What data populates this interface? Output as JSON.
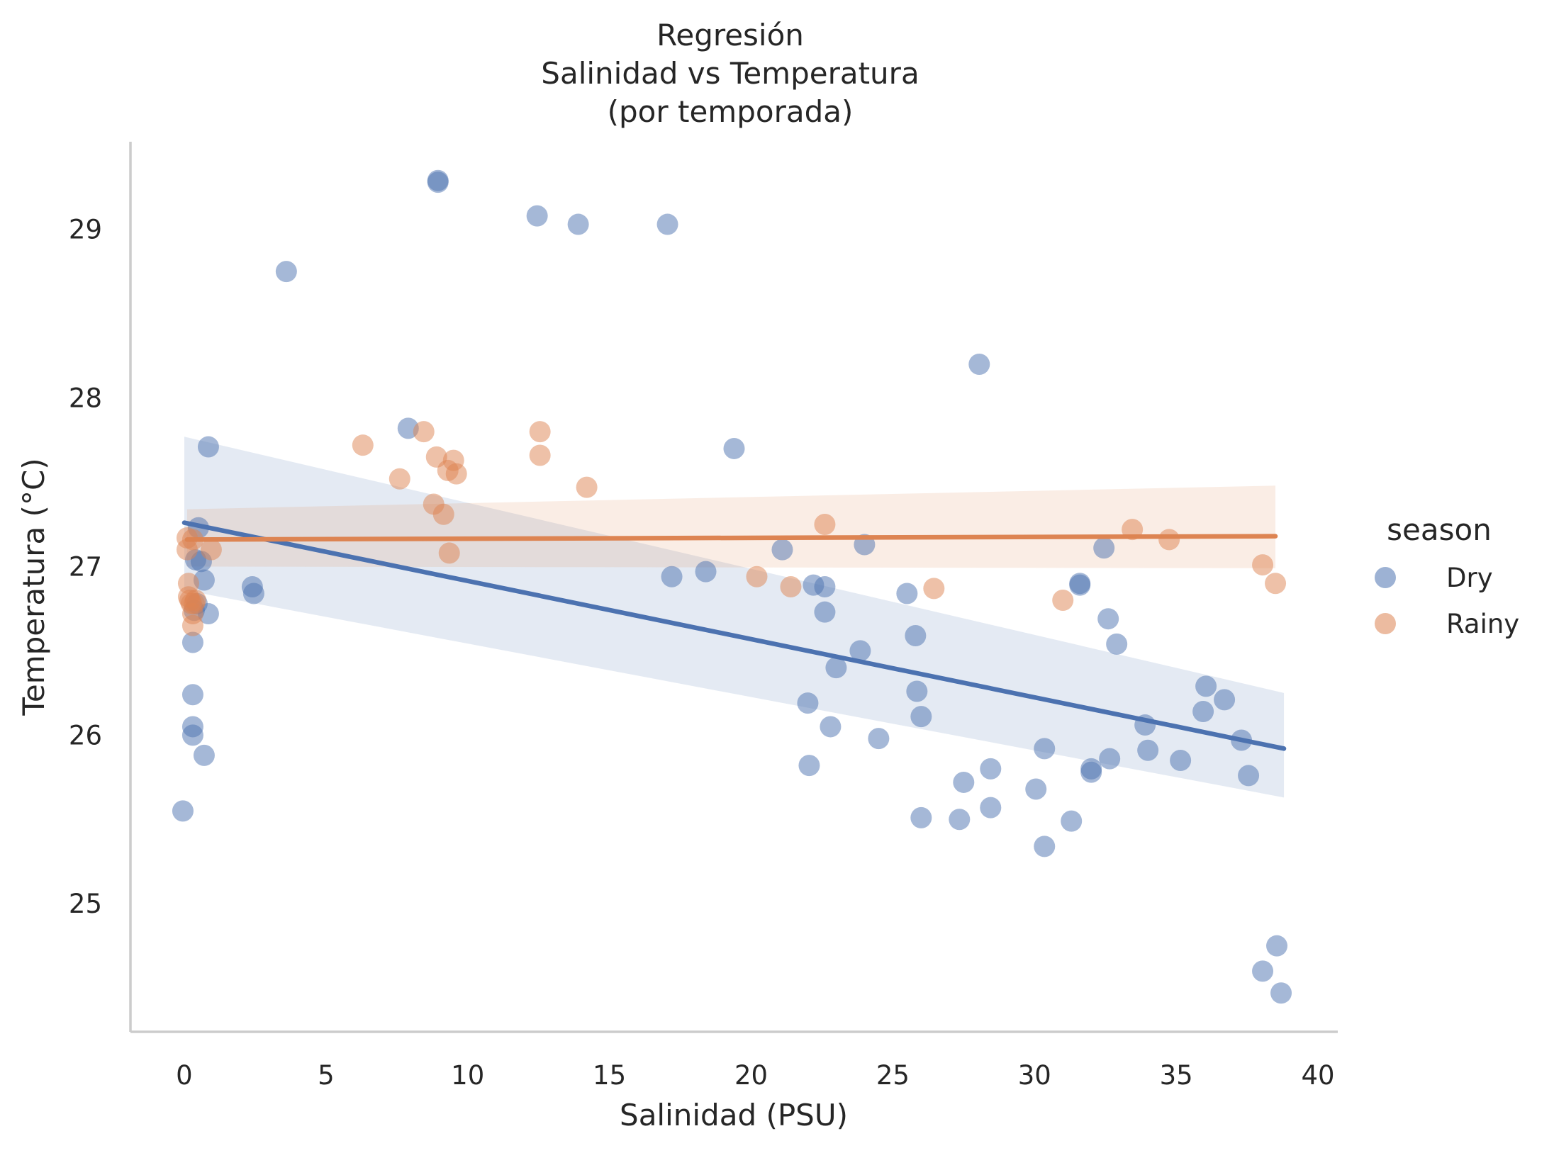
{
  "chart_data": {
    "type": "scatter",
    "title_lines": [
      "Regresión",
      "Salinidad vs Temperatura",
      "(por temporada)"
    ],
    "xlabel": "Salinidad (PSU)",
    "ylabel": "Temperatura (°C)",
    "xlim": [
      -1.9,
      40.7
    ],
    "ylim": [
      24.24,
      29.52
    ],
    "x_ticks": [
      0,
      5,
      10,
      15,
      20,
      25,
      30,
      35,
      40
    ],
    "y_ticks": [
      25,
      26,
      27,
      28,
      29
    ],
    "grid": false,
    "legend": {
      "title": "season",
      "placement": "right",
      "entries": [
        "Dry",
        "Rainy"
      ]
    },
    "series": [
      {
        "name": "Dry",
        "color": "#4c72b0",
        "points": [
          [
            -0.05,
            25.55
          ],
          [
            0.3,
            26.0
          ],
          [
            0.3,
            26.05
          ],
          [
            0.3,
            26.24
          ],
          [
            0.3,
            26.55
          ],
          [
            0.35,
            26.74
          ],
          [
            0.45,
            26.78
          ],
          [
            0.4,
            27.04
          ],
          [
            0.5,
            27.23
          ],
          [
            0.6,
            27.03
          ],
          [
            0.7,
            26.92
          ],
          [
            0.85,
            26.72
          ],
          [
            0.7,
            25.88
          ],
          [
            0.85,
            27.71
          ],
          [
            2.4,
            26.88
          ],
          [
            2.45,
            26.84
          ],
          [
            3.6,
            28.75
          ],
          [
            7.9,
            27.82
          ],
          [
            8.95,
            29.29
          ],
          [
            8.95,
            29.28
          ],
          [
            12.45,
            29.08
          ],
          [
            13.9,
            29.03
          ],
          [
            17.05,
            29.03
          ],
          [
            17.2,
            26.94
          ],
          [
            18.4,
            26.97
          ],
          [
            19.4,
            27.7
          ],
          [
            21.1,
            27.1
          ],
          [
            22.0,
            26.19
          ],
          [
            22.05,
            25.82
          ],
          [
            22.2,
            26.89
          ],
          [
            22.6,
            26.88
          ],
          [
            22.6,
            26.73
          ],
          [
            22.8,
            26.05
          ],
          [
            23.0,
            26.4
          ],
          [
            23.85,
            26.5
          ],
          [
            24.0,
            27.13
          ],
          [
            24.5,
            25.98
          ],
          [
            25.5,
            26.84
          ],
          [
            25.8,
            26.59
          ],
          [
            25.85,
            26.26
          ],
          [
            26.0,
            26.11
          ],
          [
            26.0,
            25.51
          ],
          [
            27.35,
            25.5
          ],
          [
            27.5,
            25.72
          ],
          [
            28.05,
            28.2
          ],
          [
            28.45,
            25.8
          ],
          [
            28.45,
            25.57
          ],
          [
            30.05,
            25.68
          ],
          [
            30.35,
            25.92
          ],
          [
            30.35,
            25.34
          ],
          [
            31.3,
            25.49
          ],
          [
            31.6,
            26.9
          ],
          [
            31.6,
            26.89
          ],
          [
            32.0,
            25.8
          ],
          [
            32.0,
            25.78
          ],
          [
            32.45,
            27.11
          ],
          [
            32.6,
            26.69
          ],
          [
            32.65,
            25.86
          ],
          [
            32.9,
            26.54
          ],
          [
            33.9,
            26.06
          ],
          [
            34.0,
            25.91
          ],
          [
            35.15,
            25.85
          ],
          [
            35.95,
            26.14
          ],
          [
            36.05,
            26.29
          ],
          [
            36.7,
            26.21
          ],
          [
            37.3,
            25.97
          ],
          [
            37.55,
            25.76
          ],
          [
            38.05,
            24.6
          ],
          [
            38.55,
            24.75
          ],
          [
            38.7,
            24.47
          ]
        ],
        "regression": {
          "x": [
            0.0,
            38.8
          ],
          "y": [
            27.26,
            25.92
          ]
        },
        "ci_band": {
          "x": [
            0.0,
            38.8
          ],
          "lower": [
            26.86,
            25.63
          ],
          "upper": [
            27.77,
            26.25
          ]
        }
      },
      {
        "name": "Rainy",
        "color": "#dd8452",
        "points": [
          [
            0.1,
            27.17
          ],
          [
            0.1,
            27.1
          ],
          [
            0.15,
            26.9
          ],
          [
            0.15,
            26.82
          ],
          [
            0.2,
            26.8
          ],
          [
            0.25,
            26.78
          ],
          [
            0.3,
            26.72
          ],
          [
            0.3,
            26.65
          ],
          [
            0.35,
            26.78
          ],
          [
            0.4,
            26.8
          ],
          [
            0.3,
            27.16
          ],
          [
            0.95,
            27.1
          ],
          [
            6.3,
            27.72
          ],
          [
            7.6,
            27.52
          ],
          [
            8.45,
            27.8
          ],
          [
            8.8,
            27.37
          ],
          [
            8.9,
            27.65
          ],
          [
            9.15,
            27.31
          ],
          [
            9.3,
            27.57
          ],
          [
            9.35,
            27.08
          ],
          [
            9.5,
            27.63
          ],
          [
            9.6,
            27.55
          ],
          [
            12.55,
            27.8
          ],
          [
            12.55,
            27.66
          ],
          [
            14.2,
            27.47
          ],
          [
            20.2,
            26.94
          ],
          [
            21.4,
            26.88
          ],
          [
            22.6,
            27.25
          ],
          [
            26.45,
            26.87
          ],
          [
            31.0,
            26.8
          ],
          [
            33.45,
            27.22
          ],
          [
            34.75,
            27.16
          ],
          [
            38.05,
            27.01
          ],
          [
            38.5,
            26.9
          ]
        ],
        "regression": {
          "x": [
            0.1,
            38.5
          ],
          "y": [
            27.16,
            27.18
          ]
        },
        "ci_band": {
          "x": [
            0.1,
            38.5
          ],
          "lower": [
            27.0,
            26.99
          ],
          "upper": [
            27.34,
            27.48
          ]
        }
      }
    ]
  }
}
